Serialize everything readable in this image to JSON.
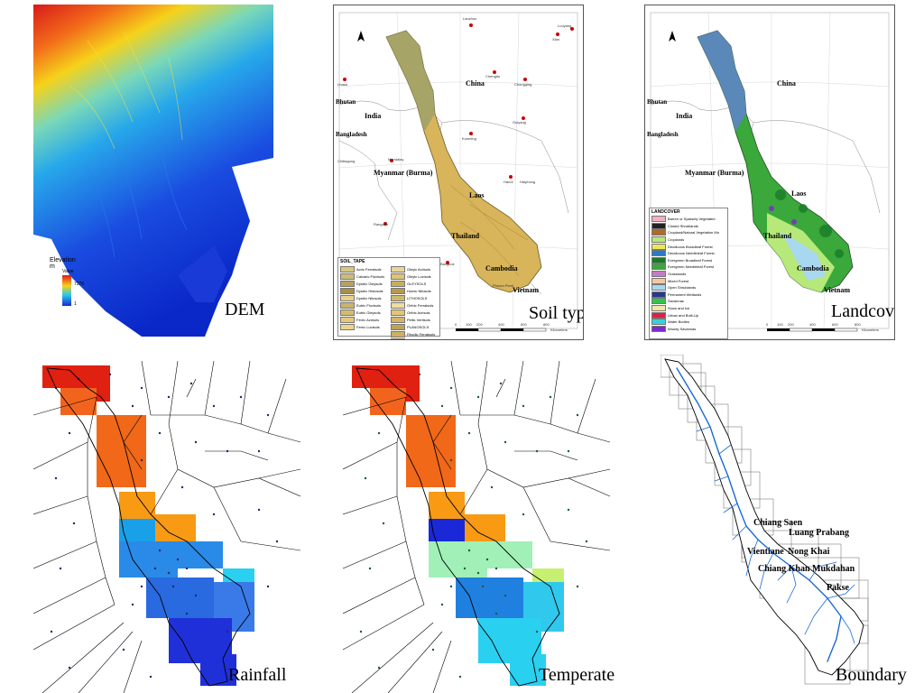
{
  "panels": {
    "dem": {
      "caption": "DEM",
      "legend": {
        "title": "Elevation m",
        "value_label": "Value",
        "max": "7276",
        "min": "1"
      }
    },
    "soil": {
      "caption": "Soil type",
      "countries": [
        "China",
        "India",
        "Bhutan",
        "Bangladesh",
        "Myanmar (Burma)",
        "Laos",
        "Thailand",
        "Cambodia",
        "Vietnam"
      ],
      "cities": [
        "Lanzhou",
        "Xian",
        "Chengdu",
        "Chongqing",
        "Lhasa",
        "Guiyang",
        "Kunming",
        "Mandalay",
        "Hanoi",
        "Haiphong",
        "Rangoon",
        "Bangkok",
        "Phnom Penh",
        "Luoyang",
        "Chittagong",
        "Dhaka",
        "Dhaka",
        "Vientiane"
      ],
      "legend_title": "SOIL_TAPE",
      "legend_col1": [
        "Acric Ferralsols",
        "Calcaric Fluvisols",
        "Dystric Gleysols",
        "Dystric Histosols",
        "Dystric Nitosols",
        "Eutric Fluvisols",
        "Eutric Gleysols",
        "Ferric Acrisols",
        "Ferric Luvisols"
      ],
      "legend_col2": [
        "Gleyic Acrisols",
        "Gleyic Luvisols",
        "GLEYSOLS",
        "Humic Nitosols",
        "LITHOSOLS",
        "Orthic Ferralsols",
        "Orthic Acrisols",
        "Pellic Vertisols",
        "PLANOSOLS",
        "Rhodic Ferralsols",
        "Thionic Fluvisols"
      ],
      "scale_labels": [
        "0",
        "100",
        "200",
        "400",
        "600",
        "800"
      ],
      "scale_unit": "Kilometers"
    },
    "landcover": {
      "caption": "Landcover",
      "legend_title": "LANDCOVER",
      "legend_items": [
        {
          "label": "Barren or Sparsely Vegetated",
          "color": "#f4b0c0"
        },
        {
          "label": "Closed Shrublands",
          "color": "#222222"
        },
        {
          "label": "Cropland/Natural Vegetation Mo",
          "color": "#b06a2a"
        },
        {
          "label": "Croplands",
          "color": "#b7e87a"
        },
        {
          "label": "Deciduous Broadleaf Forest",
          "color": "#e8e85a"
        },
        {
          "label": "Deciduous Needleleaf Forest",
          "color": "#2a7ac8"
        },
        {
          "label": "Evergreen Broadleaf Forest",
          "color": "#1a7a2a"
        },
        {
          "label": "Evergreen Needleleaf Forest",
          "color": "#3aa83a"
        },
        {
          "label": "Grasslands",
          "color": "#c77ac8"
        },
        {
          "label": "Mixed Forest",
          "color": "#f2c8a0"
        },
        {
          "label": "Open Shrublands",
          "color": "#a8d8f0"
        },
        {
          "label": "Permanent Wetlands",
          "color": "#2a3a8a"
        },
        {
          "label": "Savannas",
          "color": "#34c34a"
        },
        {
          "label": "Snow and Ice",
          "color": "#f2e6a8"
        },
        {
          "label": "Urban and Built-Up",
          "color": "#e0204a"
        },
        {
          "label": "Water Bodies",
          "color": "#3ad0d8"
        },
        {
          "label": "Woody Savannas",
          "color": "#7a2ad0"
        }
      ],
      "countries": [
        "China",
        "India",
        "Bhutan",
        "Bangladesh",
        "Myanmar (Burma)",
        "Laos",
        "Thailand",
        "Cambodia",
        "Vietnam"
      ],
      "scale_labels": [
        "0",
        "100",
        "200",
        "400",
        "600",
        "800"
      ],
      "scale_unit": "Kilometers"
    },
    "rainfall": {
      "caption": "Rainfall"
    },
    "temperate": {
      "caption": "Temperate"
    },
    "boundary": {
      "caption": "Boundary",
      "stations": [
        "Chiang Saen",
        "Luang Prabang",
        "Vientiane",
        "Nong Khai",
        "Chiang Khan",
        "Mukdahan",
        "Pakse"
      ]
    }
  }
}
